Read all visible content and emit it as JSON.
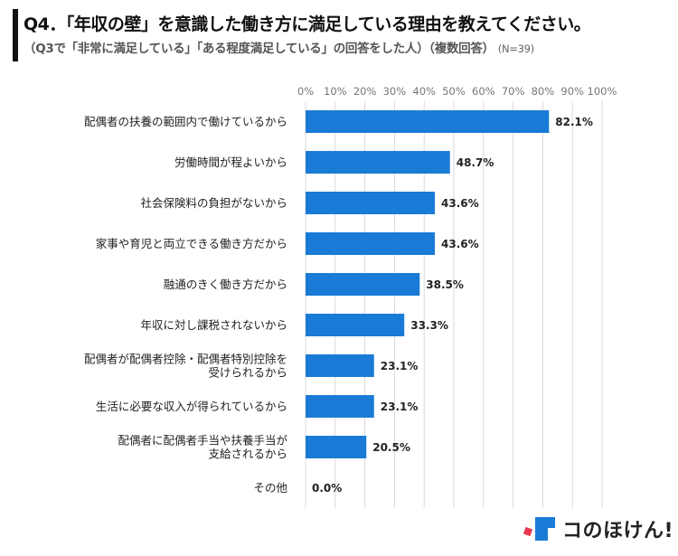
{
  "header": {
    "title": "Q4．「年収の壁」を意識した働き方に満足している理由を教えてください。",
    "subtitle": "（Q3で「非常に満足している」「ある程度満足している」の回答をした人）（複数回答）",
    "sample_size": "(N=39)"
  },
  "chart_data": {
    "type": "bar",
    "orientation": "horizontal",
    "categories": [
      [
        "配偶者の扶養の範囲内で働けているから"
      ],
      [
        "労働時間が程よいから"
      ],
      [
        "社会保険料の負担がないから"
      ],
      [
        "家事や育児と両立できる働き方だから"
      ],
      [
        "融通のきく働き方だから"
      ],
      [
        "年収に対し課税されないから"
      ],
      [
        "配偶者が配偶者控除・配偶者特別控除を",
        "受けられるから"
      ],
      [
        "生活に必要な収入が得られているから"
      ],
      [
        "配偶者に配偶者手当や扶養手当が",
        "支給されるから"
      ],
      [
        "その他"
      ]
    ],
    "values": [
      82.1,
      48.7,
      43.6,
      43.6,
      38.5,
      33.3,
      23.1,
      23.1,
      20.5,
      0.0
    ],
    "value_labels": [
      "82.1%",
      "48.7%",
      "43.6%",
      "43.6%",
      "38.5%",
      "33.3%",
      "23.1%",
      "23.1%",
      "20.5%",
      "0.0%"
    ],
    "xlim": [
      0,
      100
    ],
    "ticks": [
      "0%",
      "10%",
      "20%",
      "30%",
      "40%",
      "50%",
      "60%",
      "70%",
      "80%",
      "90%",
      "100%"
    ],
    "grid": true,
    "bar_color": "#1a7bd6"
  },
  "logo": {
    "text": "コのほけん!",
    "mark_colors": {
      "blue": "#1a7bd6",
      "red": "#e8384f"
    }
  }
}
